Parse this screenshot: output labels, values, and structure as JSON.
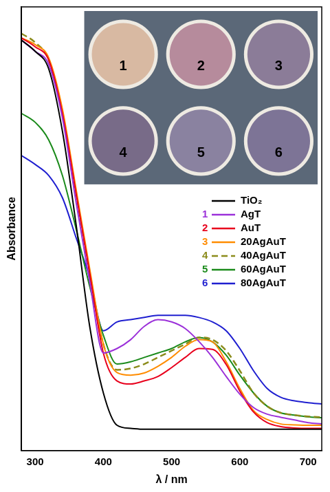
{
  "chart_data": {
    "type": "line",
    "x_label": "λ / nm",
    "y_label": "Absorbance",
    "x": [
      280,
      300,
      320,
      340,
      360,
      380,
      400,
      420,
      440,
      460,
      480,
      500,
      520,
      540,
      560,
      580,
      600,
      620,
      640,
      660,
      680,
      700,
      720
    ],
    "xlim": [
      280,
      720
    ],
    "xticks": [
      300,
      400,
      500,
      600,
      700
    ],
    "ylim": [
      0,
      1
    ],
    "tick_labels": "x",
    "grid": false,
    "legend": "right",
    "series": [
      {
        "name": "TiO₂",
        "color": "#000000",
        "line_style": "solid",
        "values": [
          0.925,
          0.9,
          0.86,
          0.72,
          0.51,
          0.28,
          0.13,
          0.057,
          0.05,
          0.048,
          0.048,
          0.048,
          0.048,
          0.048,
          0.048,
          0.048,
          0.048,
          0.048,
          0.048,
          0.048,
          0.048,
          0.048,
          0.048
        ]
      },
      {
        "name": "AgT",
        "sample": "1",
        "color": "#9b30d9",
        "line_style": "solid",
        "values": [
          0.925,
          0.9,
          0.87,
          0.75,
          0.56,
          0.38,
          0.22,
          0.23,
          0.25,
          0.28,
          0.295,
          0.29,
          0.275,
          0.246,
          0.21,
          0.167,
          0.127,
          0.097,
          0.082,
          0.075,
          0.069,
          0.063,
          0.06
        ]
      },
      {
        "name": "AuT",
        "sample": "2",
        "color": "#e8001c",
        "line_style": "solid",
        "values": [
          0.93,
          0.91,
          0.88,
          0.76,
          0.58,
          0.4,
          0.22,
          0.157,
          0.15,
          0.157,
          0.167,
          0.187,
          0.21,
          0.23,
          0.228,
          0.194,
          0.134,
          0.087,
          0.063,
          0.054,
          0.051,
          0.05,
          0.05
        ]
      },
      {
        "name": "20AgAuT",
        "sample": "3",
        "color": "#ff8c00",
        "line_style": "solid",
        "values": [
          0.93,
          0.915,
          0.885,
          0.77,
          0.59,
          0.41,
          0.24,
          0.176,
          0.17,
          0.175,
          0.19,
          0.21,
          0.235,
          0.25,
          0.245,
          0.2,
          0.14,
          0.09,
          0.07,
          0.06,
          0.058,
          0.057,
          0.057
        ]
      },
      {
        "name": "40AgAuT",
        "sample": "4",
        "color": "#8b8b1a",
        "line_style": "dashed",
        "values": [
          0.94,
          0.92,
          0.88,
          0.76,
          0.58,
          0.4,
          0.24,
          0.182,
          0.185,
          0.195,
          0.21,
          0.225,
          0.24,
          0.255,
          0.25,
          0.225,
          0.18,
          0.13,
          0.1,
          0.085,
          0.08,
          0.077,
          0.075
        ]
      },
      {
        "name": "60AgAuT",
        "sample": "5",
        "color": "#1a8a1a",
        "line_style": "solid",
        "values": [
          0.76,
          0.74,
          0.7,
          0.62,
          0.5,
          0.37,
          0.26,
          0.195,
          0.2,
          0.21,
          0.22,
          0.23,
          0.245,
          0.255,
          0.245,
          0.215,
          0.17,
          0.13,
          0.1,
          0.085,
          0.08,
          0.076,
          0.074
        ]
      },
      {
        "name": "80AgAuT",
        "sample": "6",
        "color": "#1f1fd0",
        "line_style": "solid",
        "values": [
          0.665,
          0.645,
          0.62,
          0.57,
          0.48,
          0.39,
          0.27,
          0.29,
          0.295,
          0.3,
          0.305,
          0.305,
          0.305,
          0.3,
          0.29,
          0.27,
          0.23,
          0.18,
          0.14,
          0.12,
          0.112,
          0.108,
          0.105
        ]
      }
    ]
  }
}
